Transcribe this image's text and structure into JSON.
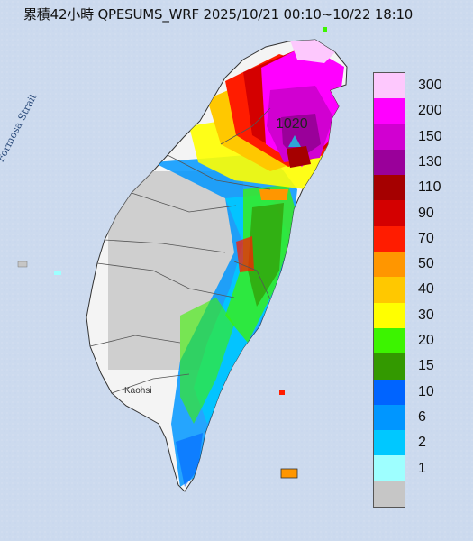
{
  "title": "累積42小時 QPESUMS_WRF 2025/10/21 00:10~10/22 18:10",
  "strait_label": "Formosa Strait",
  "city_label": "Kaohsi",
  "peak": {
    "value": "1020"
  },
  "legend": {
    "items": [
      {
        "label": "300",
        "color": "#fdc8fd"
      },
      {
        "label": "200",
        "color": "#ff00ff"
      },
      {
        "label": "150",
        "color": "#d100d1"
      },
      {
        "label": "130",
        "color": "#9a009a"
      },
      {
        "label": "110",
        "color": "#a50000"
      },
      {
        "label": "90",
        "color": "#d40000"
      },
      {
        "label": "70",
        "color": "#ff1c00"
      },
      {
        "label": "50",
        "color": "#ff9600"
      },
      {
        "label": "40",
        "color": "#ffc800"
      },
      {
        "label": "30",
        "color": "#ffff00"
      },
      {
        "label": "20",
        "color": "#3cf400"
      },
      {
        "label": "15",
        "color": "#339900"
      },
      {
        "label": "10",
        "color": "#0064ff"
      },
      {
        "label": "6",
        "color": "#0096ff"
      },
      {
        "label": "2",
        "color": "#00c8ff"
      },
      {
        "label": "1",
        "color": "#9effff"
      },
      {
        "label": "",
        "color": "#c6c6c6"
      }
    ]
  }
}
